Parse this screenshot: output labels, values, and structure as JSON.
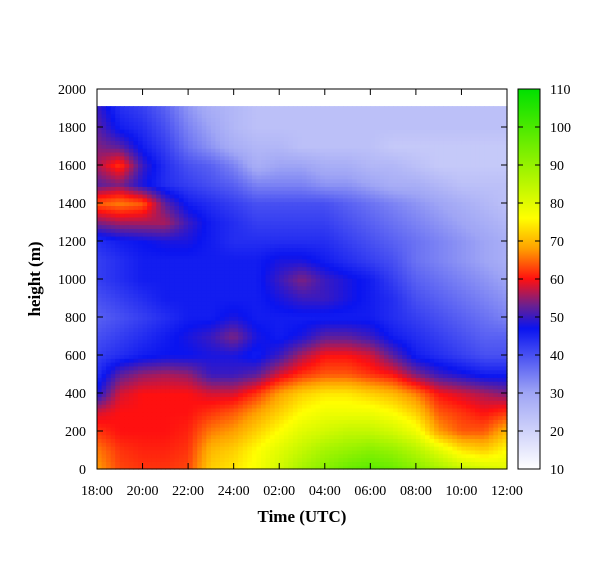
{
  "chart_data": {
    "type": "heatmap",
    "title": "",
    "xlabel": "Time (UTC)",
    "ylabel": "height (m)",
    "x_ticks": [
      "18:00",
      "20:00",
      "22:00",
      "24:00",
      "02:00",
      "04:00",
      "06:00",
      "08:00",
      "10:00",
      "12:00"
    ],
    "xlim_hours": [
      0,
      18
    ],
    "y_ticks": [
      0,
      200,
      400,
      600,
      800,
      1000,
      1200,
      1400,
      1600,
      1800,
      2000
    ],
    "ylim": [
      0,
      2000
    ],
    "data_top_height": 1910,
    "colorbar": {
      "range": [
        10,
        110
      ],
      "ticks": [
        10,
        20,
        30,
        40,
        50,
        60,
        70,
        80,
        90,
        100,
        110
      ],
      "colormap": [
        {
          "value": 10,
          "color": "#ffffff"
        },
        {
          "value": 30,
          "color": "#9fa5f5"
        },
        {
          "value": 47,
          "color": "#0a14f0"
        },
        {
          "value": 53,
          "color": "#6a2090"
        },
        {
          "value": 60,
          "color": "#ff1010"
        },
        {
          "value": 68,
          "color": "#ffa000"
        },
        {
          "value": 76,
          "color": "#ffff00"
        },
        {
          "value": 110,
          "color": "#00e000"
        }
      ]
    },
    "grid": false,
    "field": {
      "heights": [
        0,
        100,
        200,
        300,
        400,
        500,
        600,
        700,
        800,
        900,
        1000,
        1100,
        1200,
        1300,
        1400,
        1500,
        1600,
        1700,
        1800,
        1900
      ],
      "hours": [
        0,
        1,
        2,
        3,
        4,
        5,
        6,
        7,
        8,
        9,
        10,
        11,
        12,
        13,
        14,
        15,
        16,
        17,
        18
      ],
      "values": [
        [
          68,
          63,
          62,
          62,
          63,
          72,
          74,
          77,
          82,
          88,
          92,
          96,
          98,
          96,
          92,
          88,
          84,
          82,
          80
        ],
        [
          66,
          62,
          61,
          61,
          62,
          70,
          72,
          76,
          80,
          84,
          88,
          90,
          92,
          90,
          86,
          80,
          74,
          72,
          76
        ],
        [
          62,
          60,
          60,
          60,
          61,
          66,
          68,
          72,
          76,
          80,
          82,
          84,
          84,
          82,
          78,
          68,
          64,
          64,
          70
        ],
        [
          58,
          60,
          60,
          60,
          60,
          62,
          64,
          68,
          72,
          76,
          78,
          78,
          78,
          76,
          72,
          64,
          62,
          60,
          62
        ],
        [
          48,
          58,
          60,
          60,
          60,
          58,
          58,
          62,
          68,
          72,
          74,
          74,
          72,
          70,
          66,
          60,
          58,
          56,
          54
        ],
        [
          44,
          52,
          55,
          56,
          55,
          50,
          50,
          52,
          58,
          62,
          64,
          64,
          62,
          60,
          54,
          50,
          48,
          46,
          46
        ],
        [
          42,
          44,
          46,
          47,
          47,
          48,
          48,
          46,
          50,
          56,
          60,
          60,
          58,
          52,
          46,
          44,
          42,
          40,
          40
        ],
        [
          40,
          42,
          44,
          46,
          48,
          50,
          54,
          48,
          46,
          48,
          52,
          52,
          50,
          46,
          44,
          42,
          40,
          38,
          38
        ],
        [
          38,
          40,
          42,
          44,
          46,
          46,
          48,
          46,
          46,
          46,
          46,
          46,
          46,
          44,
          42,
          40,
          38,
          36,
          34
        ],
        [
          40,
          42,
          44,
          46,
          46,
          46,
          46,
          46,
          48,
          50,
          50,
          48,
          46,
          44,
          40,
          38,
          36,
          34,
          32
        ],
        [
          42,
          44,
          46,
          46,
          46,
          46,
          46,
          46,
          50,
          54,
          50,
          48,
          46,
          42,
          38,
          36,
          34,
          32,
          30
        ],
        [
          42,
          44,
          46,
          46,
          46,
          46,
          46,
          46,
          48,
          48,
          46,
          44,
          42,
          40,
          36,
          34,
          32,
          30,
          28
        ],
        [
          44,
          46,
          47,
          48,
          48,
          46,
          44,
          44,
          44,
          44,
          44,
          42,
          40,
          38,
          36,
          34,
          32,
          30,
          28
        ],
        [
          54,
          56,
          56,
          56,
          50,
          46,
          44,
          42,
          42,
          42,
          42,
          40,
          38,
          36,
          34,
          32,
          30,
          28,
          26
        ],
        [
          64,
          66,
          64,
          52,
          46,
          44,
          42,
          40,
          40,
          40,
          40,
          38,
          36,
          34,
          32,
          30,
          28,
          26,
          24
        ],
        [
          52,
          54,
          48,
          44,
          42,
          40,
          38,
          34,
          34,
          34,
          32,
          32,
          30,
          28,
          28,
          26,
          24,
          24,
          24
        ],
        [
          56,
          62,
          50,
          44,
          40,
          38,
          34,
          28,
          30,
          30,
          28,
          28,
          26,
          26,
          24,
          22,
          22,
          22,
          22
        ],
        [
          54,
          52,
          46,
          42,
          36,
          32,
          28,
          26,
          26,
          24,
          24,
          24,
          24,
          22,
          22,
          22,
          22,
          22,
          22
        ],
        [
          52,
          46,
          44,
          40,
          34,
          30,
          26,
          24,
          24,
          24,
          24,
          24,
          24,
          24,
          24,
          24,
          24,
          24,
          24
        ],
        [
          50,
          44,
          42,
          38,
          32,
          28,
          26,
          24,
          24,
          24,
          24,
          24,
          24,
          24,
          24,
          24,
          24,
          24,
          24
        ]
      ]
    }
  }
}
